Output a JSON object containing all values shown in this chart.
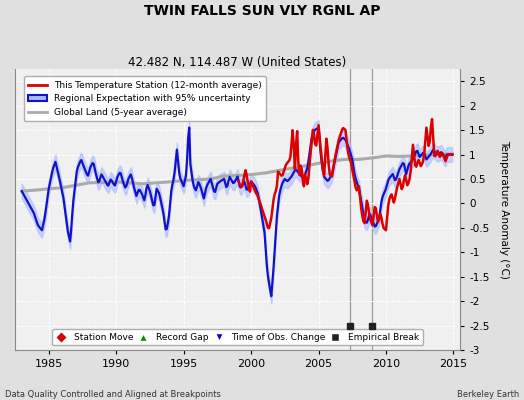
{
  "title": "TWIN FALLS SUN VLY RGNL AP",
  "subtitle": "42.482 N, 114.487 W (United States)",
  "ylabel": "Temperature Anomaly (°C)",
  "xlabel_left": "Data Quality Controlled and Aligned at Breakpoints",
  "xlabel_right": "Berkeley Earth",
  "xlim": [
    1982.5,
    2015.5
  ],
  "ylim": [
    -3.0,
    2.75
  ],
  "yticks": [
    -3,
    -2.5,
    -2,
    -1.5,
    -1,
    -0.5,
    0,
    0.5,
    1,
    1.5,
    2,
    2.5
  ],
  "xticks": [
    1985,
    1990,
    1995,
    2000,
    2005,
    2010,
    2015
  ],
  "empirical_breaks": [
    2007.3,
    2009.0
  ],
  "vertical_lines": [
    2007.3,
    2009.0
  ],
  "red_line_color": "#dd0000",
  "blue_line_color": "#1111cc",
  "blue_fill_color": "#aabbff",
  "gray_line_color": "#aaaaaa",
  "bg_color": "#f0f0f0",
  "fig_bg_color": "#e0e0e0",
  "grid_color": "#ffffff",
  "fig_width": 5.24,
  "fig_height": 4.0,
  "fig_dpi": 100
}
